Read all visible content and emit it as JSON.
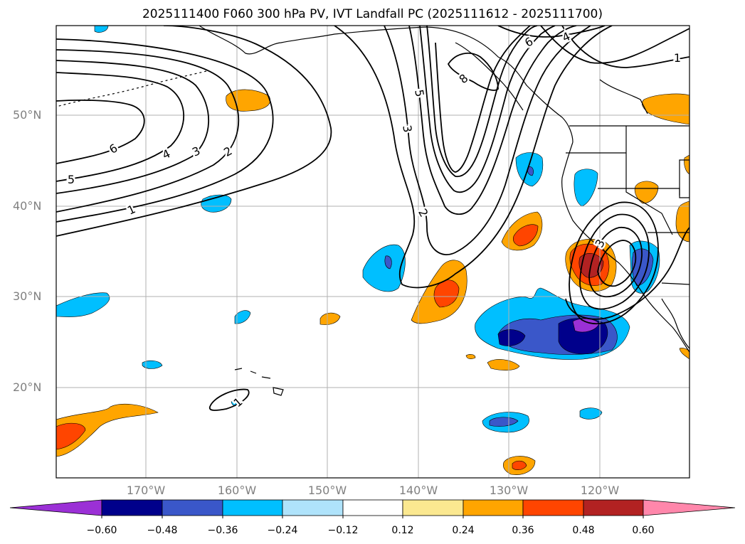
{
  "title": "2025111400 F060 300 hPa PV, IVT Landfall PC (2025111612 - 2025111700)",
  "colors": {
    "neg_extreme": "#9b30d6",
    "neg_060": "#00008b",
    "neg_048": "#3a57c9",
    "neg_036": "#00bfff",
    "neg_024": "#afe3fb",
    "neutral": "#ffffff",
    "pos_012": "#fbe890",
    "pos_024": "#ffa500",
    "pos_036": "#ff4500",
    "pos_048": "#b22222",
    "pos_extreme": "#ff87ab"
  },
  "lat_labels": [
    "50°N",
    "40°N",
    "30°N",
    "20°N"
  ],
  "lon_labels": [
    "170°W",
    "160°W",
    "150°W",
    "140°W",
    "130°W",
    "120°W"
  ],
  "colorbar_labels": [
    "−0.60",
    "−0.48",
    "−0.36",
    "−0.24",
    "−0.12",
    "0.12",
    "0.24",
    "0.36",
    "0.48",
    "0.60"
  ],
  "contour_labels": {
    "west_6": "6",
    "west_5": "5",
    "west_4": "4",
    "west_3": "3",
    "west_2": "2",
    "west_1": "1",
    "trough_5": "5",
    "trough_3": "3",
    "trough_2": "2",
    "ridge_8": "8",
    "ridge_6": "6",
    "ridge_4": "4",
    "ridge_1": "1",
    "low_3": "3",
    "hawaii_1": "1"
  }
}
